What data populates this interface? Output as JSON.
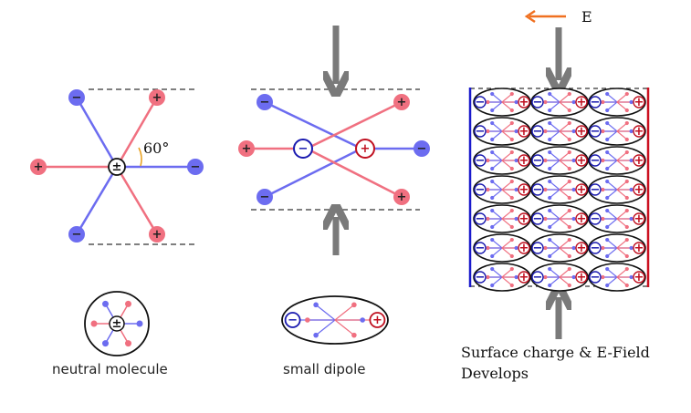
{
  "labels": {
    "angle": "60°",
    "neutral": "neutral molecule",
    "dipole": "small dipole",
    "surface_line1": "Surface charge & E-Field",
    "surface_line2": "Develops",
    "field": "E"
  },
  "symbols": {
    "plus": "+",
    "minus": "−",
    "neutral": "±"
  },
  "lattice": {
    "rows": 7,
    "cols": 3
  },
  "colors": {
    "blue": "#6c6cf0",
    "blue_dark": "#1a1ab0",
    "red": "#f07080",
    "red_dark": "#c01020",
    "arrow_gray": "#7a7a7a",
    "field_arrow": "#f07020",
    "plate_blue": "#1a1acc",
    "plate_red": "#cc1020"
  }
}
